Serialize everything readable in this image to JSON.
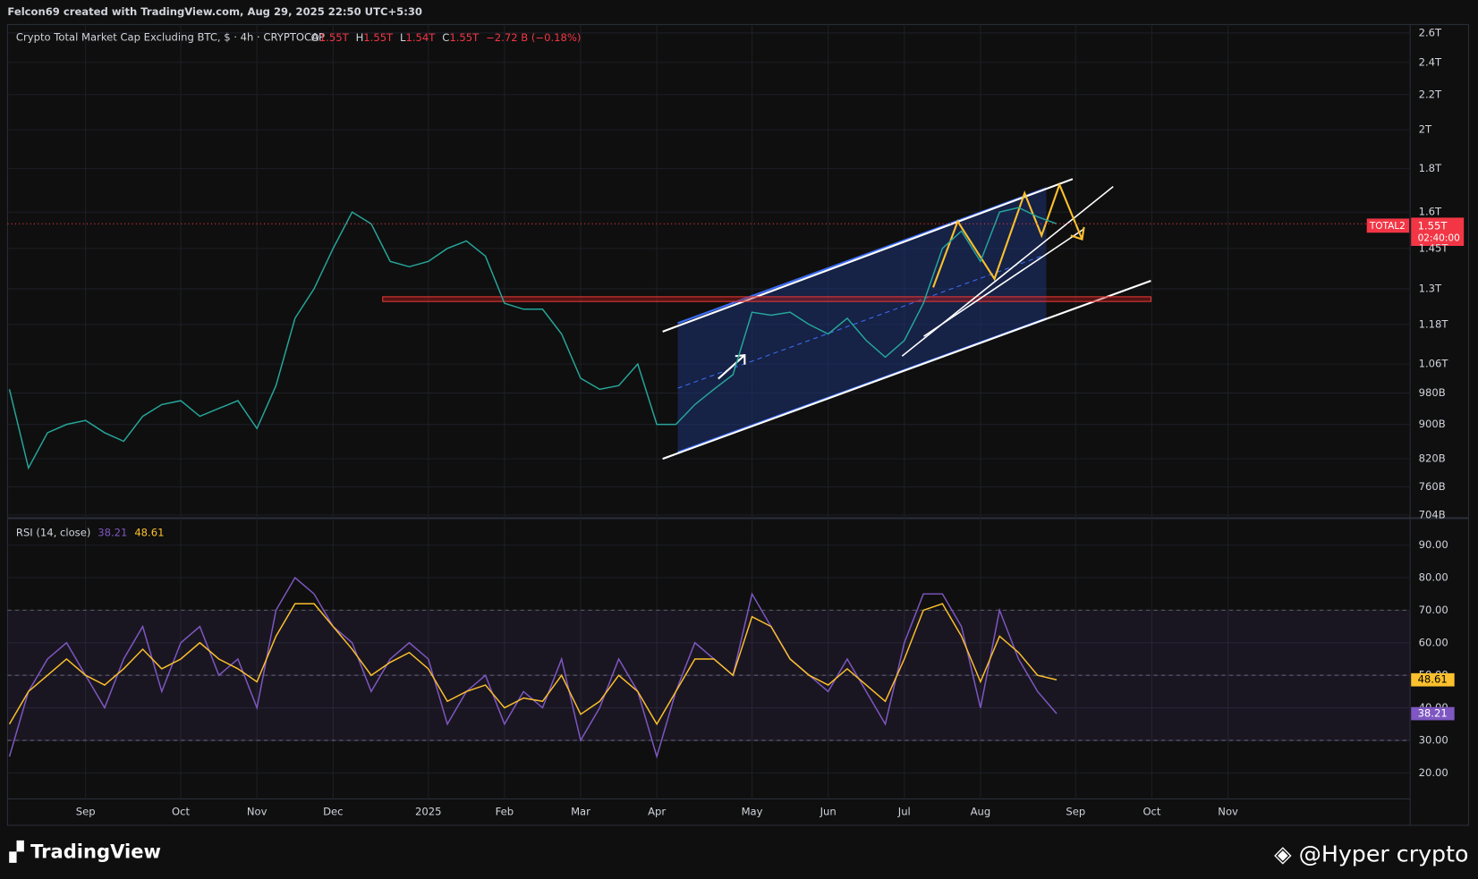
{
  "header": {
    "text": "Felcon69 created with TradingView.com, Aug 29, 2025 22:50 UTC+5:30"
  },
  "footer": {
    "brand": "TradingView",
    "watermark": "@Hyper crypto"
  },
  "chart_data": [
    {
      "type": "line",
      "title": "Crypto Total Market Cap Excluding BTC, $ · 4h · CRYPTOCAP",
      "legend": {
        "o_label": "O",
        "open": "1.55T",
        "h_label": "H",
        "high": "1.55T",
        "l_label": "L",
        "low": "1.54T",
        "c_label": "C",
        "close": "1.55T",
        "change": "−2.72 B (−0.18%)"
      },
      "symbol": "TOTAL2",
      "countdown": "02:40:00",
      "last_price": {
        "value": 1550,
        "label": "1.55T"
      },
      "log_scale": true,
      "grid": true,
      "ylim": [
        700,
        2660
      ],
      "yticks": [
        {
          "value": 704,
          "label": "704B"
        },
        {
          "value": 760,
          "label": "760B"
        },
        {
          "value": 820,
          "label": "820B"
        },
        {
          "value": 900,
          "label": "900B"
        },
        {
          "value": 980,
          "label": "980B"
        },
        {
          "value": 1060,
          "label": "1.06T"
        },
        {
          "value": 1180,
          "label": "1.18T"
        },
        {
          "value": 1300,
          "label": "1.3T"
        },
        {
          "value": 1450,
          "label": "1.45T"
        },
        {
          "value": 1600,
          "label": "1.6T"
        },
        {
          "value": 1800,
          "label": "1.8T"
        },
        {
          "value": 2000,
          "label": "2T"
        },
        {
          "value": 2200,
          "label": "2.2T"
        },
        {
          "value": 2400,
          "label": "2.4T"
        },
        {
          "value": 2600,
          "label": "2.6T"
        }
      ],
      "series": [
        {
          "name": "TOTAL2",
          "color": "#26a69a",
          "values": [
            990,
            800,
            880,
            900,
            910,
            880,
            860,
            920,
            950,
            960,
            920,
            940,
            960,
            890,
            1000,
            1200,
            1300,
            1450,
            1600,
            1550,
            1400,
            1380,
            1400,
            1450,
            1480,
            1420,
            1250,
            1230,
            1230,
            1150,
            1020,
            990,
            1000,
            1060,
            900,
            900,
            950,
            990,
            1030,
            1220,
            1210,
            1220,
            1180,
            1150,
            1200,
            1130,
            1080,
            1130,
            1250,
            1450,
            1520,
            1400,
            1600,
            1620,
            1580,
            1550,
            null,
            null,
            null,
            null,
            null,
            null,
            null,
            null,
            null,
            null,
            null,
            null,
            null,
            null,
            null,
            null,
            null,
            null
          ]
        }
      ]
    },
    {
      "type": "line",
      "title": "RSI (14, close)",
      "grid": true,
      "categories": [
        null,
        null,
        null,
        null,
        "Sep",
        null,
        null,
        null,
        null,
        "Oct",
        null,
        null,
        null,
        "Nov",
        null,
        null,
        null,
        "Dec",
        null,
        null,
        null,
        null,
        "2025",
        null,
        null,
        null,
        "Feb",
        null,
        null,
        null,
        "Mar",
        null,
        null,
        null,
        "Apr",
        null,
        null,
        null,
        null,
        "May",
        null,
        null,
        null,
        "Jun",
        null,
        null,
        null,
        "Jul",
        null,
        null,
        null,
        "Aug",
        null,
        null,
        null,
        null,
        "Sep",
        null,
        null,
        null,
        "Oct",
        null,
        null,
        null,
        "Nov",
        null,
        null,
        null,
        null,
        null,
        null,
        null,
        null,
        null
      ],
      "ylim": [
        12,
        98
      ],
      "levels": [
        30,
        50,
        70
      ],
      "yticks": [
        {
          "value": 20,
          "label": "20.00"
        },
        {
          "value": 30,
          "label": "30.00"
        },
        {
          "value": 40,
          "label": "40.00"
        },
        {
          "value": 50,
          "label": "50.00"
        },
        {
          "value": 60,
          "label": "60.00"
        },
        {
          "value": 70,
          "label": "70.00"
        },
        {
          "value": 80,
          "label": "80.00"
        },
        {
          "value": 90,
          "label": "90.00"
        }
      ],
      "series": [
        {
          "name": "RSI",
          "color": "#7e57c2",
          "values": [
            25,
            45,
            55,
            60,
            50,
            40,
            55,
            65,
            45,
            60,
            65,
            50,
            55,
            40,
            70,
            80,
            75,
            65,
            60,
            45,
            55,
            60,
            55,
            35,
            45,
            50,
            35,
            45,
            40,
            55,
            30,
            40,
            55,
            45,
            25,
            45,
            60,
            55,
            50,
            75,
            65,
            55,
            50,
            45,
            55,
            45,
            35,
            60,
            75,
            75,
            65,
            40,
            70,
            55,
            45,
            38.21,
            null,
            null,
            null,
            null,
            null,
            null,
            null,
            null,
            null,
            null,
            null,
            null,
            null,
            null,
            null,
            null,
            null,
            null
          ]
        },
        {
          "name": "RSI-based MA",
          "color": "#fbc02d",
          "values": [
            35,
            45,
            50,
            55,
            50,
            47,
            52,
            58,
            52,
            55,
            60,
            55,
            52,
            48,
            62,
            72,
            72,
            65,
            58,
            50,
            54,
            57,
            52,
            42,
            45,
            47,
            40,
            43,
            42,
            50,
            38,
            42,
            50,
            45,
            35,
            45,
            55,
            55,
            50,
            68,
            65,
            55,
            50,
            47,
            52,
            47,
            42,
            55,
            70,
            72,
            62,
            48,
            62,
            57,
            50,
            48.61,
            null,
            null,
            null,
            null,
            null,
            null,
            null,
            null,
            null,
            null,
            null,
            null,
            null,
            null,
            null,
            null,
            null,
            null
          ]
        }
      ]
    }
  ]
}
